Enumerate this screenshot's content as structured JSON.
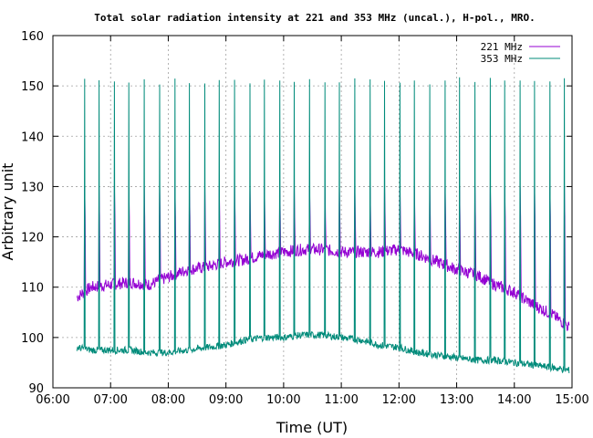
{
  "chart_data": {
    "type": "line",
    "title": "Total solar radiation intensity at 221 and 353 MHz (uncal.), H-pol., MRO.",
    "xlabel": "Time (UT)",
    "ylabel": "Arbitrary unit",
    "xlim": [
      "06:00",
      "15:00"
    ],
    "ylim": [
      90,
      160
    ],
    "x_ticks": [
      "06:00",
      "07:00",
      "08:00",
      "09:00",
      "10:00",
      "11:00",
      "12:00",
      "13:00",
      "14:00",
      "15:00"
    ],
    "y_ticks": [
      90,
      100,
      110,
      120,
      130,
      140,
      150,
      160
    ],
    "grid": true,
    "legend_position": "top-right",
    "series": [
      {
        "name": "221 MHz",
        "color": "#9400d3",
        "start": "06:25",
        "end": "14:57",
        "baseline_x": [
          "06:25",
          "06:40",
          "07:00",
          "07:20",
          "07:40",
          "08:00",
          "08:20",
          "08:40",
          "09:00",
          "09:20",
          "09:40",
          "10:00",
          "10:20",
          "10:40",
          "11:00",
          "11:20",
          "11:40",
          "12:00",
          "12:20",
          "12:40",
          "13:00",
          "13:20",
          "13:40",
          "14:00",
          "14:20",
          "14:40",
          "14:57"
        ],
        "baseline_y": [
          108,
          110,
          110.5,
          111,
          110.5,
          112,
          113.5,
          114,
          115,
          115.5,
          116.5,
          117,
          117.5,
          117.5,
          117,
          117,
          117,
          117.5,
          116.5,
          115,
          113.5,
          112.5,
          110.5,
          109,
          106.5,
          104.5,
          102
        ],
        "calibration_spike_low": 124,
        "calibration_spike_high": 130,
        "calibration_times": [
          "06:33",
          "06:48",
          "07:04",
          "07:19",
          "07:35",
          "07:51",
          "08:07",
          "08:22",
          "08:38",
          "08:53",
          "09:09",
          "09:25",
          "09:40",
          "09:56",
          "10:11",
          "10:27",
          "10:43",
          "10:58",
          "11:14",
          "11:30",
          "11:45",
          "12:01",
          "12:16",
          "12:32",
          "12:48",
          "13:03",
          "13:19",
          "13:35",
          "13:50",
          "14:06",
          "14:21",
          "14:37",
          "14:52"
        ]
      },
      {
        "name": "353 MHz",
        "color": "#008b7a",
        "start": "06:25",
        "end": "14:57",
        "baseline_x": [
          "06:25",
          "06:40",
          "07:00",
          "07:20",
          "07:40",
          "08:00",
          "08:20",
          "08:40",
          "09:00",
          "09:20",
          "09:40",
          "10:00",
          "10:20",
          "10:40",
          "11:00",
          "11:20",
          "11:40",
          "12:00",
          "12:20",
          "12:40",
          "13:00",
          "13:20",
          "13:40",
          "14:00",
          "14:20",
          "14:40",
          "14:57"
        ],
        "baseline_y": [
          98,
          97.5,
          97.5,
          97.5,
          97,
          97,
          97.5,
          98,
          98.5,
          99.5,
          100,
          100,
          100.5,
          100.5,
          100,
          99.5,
          98.5,
          98,
          97,
          96.5,
          96,
          95.5,
          95.5,
          95,
          94.5,
          94,
          93.5
        ],
        "calibration_spike_high": 151,
        "calibration_times": [
          "06:33",
          "06:48",
          "07:04",
          "07:19",
          "07:35",
          "07:51",
          "08:07",
          "08:22",
          "08:38",
          "08:53",
          "09:09",
          "09:25",
          "09:40",
          "09:56",
          "10:11",
          "10:27",
          "10:43",
          "10:58",
          "11:14",
          "11:30",
          "11:45",
          "12:01",
          "12:16",
          "12:32",
          "12:48",
          "13:03",
          "13:19",
          "13:35",
          "13:50",
          "14:06",
          "14:21",
          "14:37",
          "14:52"
        ]
      }
    ]
  }
}
